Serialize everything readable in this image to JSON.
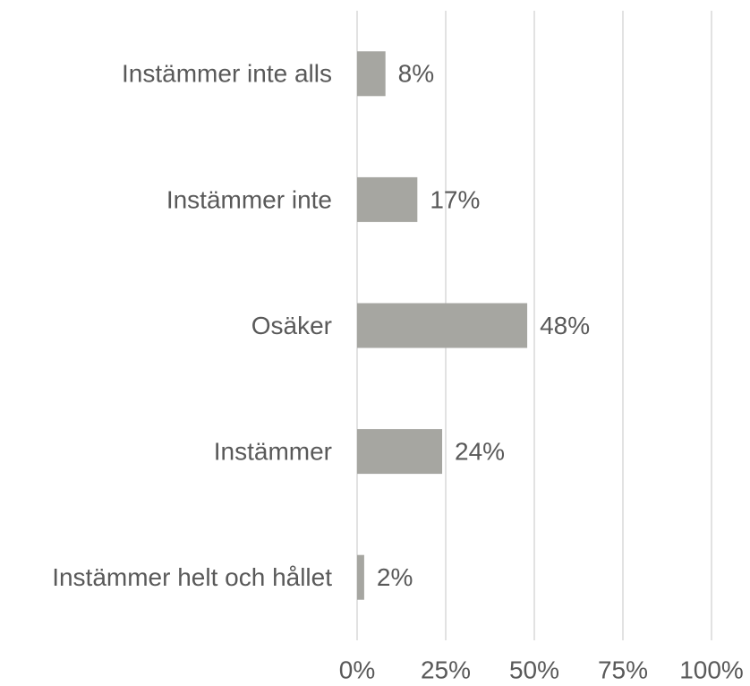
{
  "chart_data": {
    "type": "barh",
    "categories": [
      "Instämmer inte alls",
      "Instämmer inte",
      "Osäker",
      "Instämmer",
      "Instämmer helt och hållet"
    ],
    "values": [
      8,
      17,
      48,
      24,
      2
    ],
    "value_labels": [
      "8%",
      "17%",
      "48%",
      "24%",
      "2%"
    ],
    "color": "#a6a6a1",
    "xlim": [
      0,
      100
    ],
    "xticks": [
      {
        "value": 0,
        "label": "0%"
      },
      {
        "value": 25,
        "label": "25%"
      },
      {
        "value": 50,
        "label": "50%"
      },
      {
        "value": 75,
        "label": "75%"
      },
      {
        "value": 100,
        "label": "100%"
      }
    ],
    "grid": true
  }
}
